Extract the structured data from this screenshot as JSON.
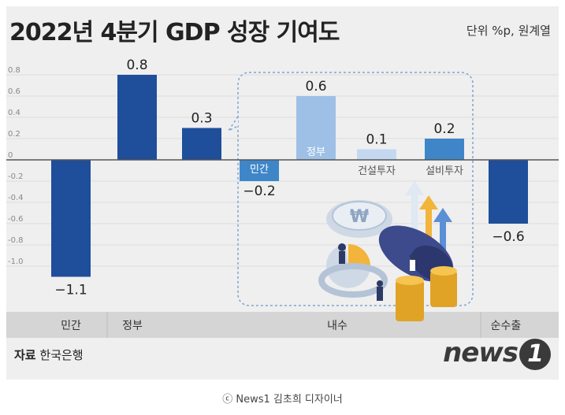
{
  "header": {
    "title": "2022년 4분기 GDP 성장 기여도",
    "unit": "단위 %p, 원계열"
  },
  "footer": {
    "source_label": "자료",
    "source": "한국은행",
    "logo": "news",
    "logo_mark": "1",
    "credit": "ⓒ News1 김초희 디자이너"
  },
  "chart_data": {
    "type": "bar",
    "title": "2022년 4분기 GDP 성장 기여도",
    "ylabel": "",
    "ylim": [
      -1.2,
      0.8
    ],
    "yticks": [
      {
        "value": 0.8,
        "label": "0.8"
      },
      {
        "value": 0.6,
        "label": "0.6"
      },
      {
        "value": 0.4,
        "label": "0.4"
      },
      {
        "value": 0.2,
        "label": "0.2"
      },
      {
        "value": 0.0,
        "label": "0"
      },
      {
        "value": -0.2,
        "label": "-0.2"
      },
      {
        "value": -0.4,
        "label": "-0.4"
      },
      {
        "value": -0.6,
        "label": "-0.6"
      },
      {
        "value": -0.8,
        "label": "-0.8"
      },
      {
        "value": -1.0,
        "label": "-1.0"
      }
    ],
    "bars": [
      {
        "id": "private",
        "category": "민간",
        "value": -1.1,
        "label": "−1.1",
        "color": "#1f4e9a"
      },
      {
        "id": "government",
        "category": "정부",
        "value": 0.8,
        "label": "0.8",
        "color": "#1f4e9a"
      },
      {
        "id": "domestic",
        "category": "내수",
        "value": 0.3,
        "label": "0.3",
        "color": "#1f4e9a"
      },
      {
        "id": "domestic-private",
        "category": "민간",
        "value": -0.2,
        "label": "−0.2",
        "color": "#3f86c9"
      },
      {
        "id": "domestic-government",
        "category": "정부",
        "value": 0.6,
        "label": "0.6",
        "color": "#9ec0e6"
      },
      {
        "id": "domestic-construction",
        "category": "건설투자",
        "value": 0.1,
        "label": "0.1",
        "color": "#c4d9f0"
      },
      {
        "id": "domestic-equipment",
        "category": "설비투자",
        "value": 0.2,
        "label": "0.2",
        "color": "#3f86c9"
      },
      {
        "id": "net-exports",
        "category": "순수출",
        "value": -0.6,
        "label": "−0.6",
        "color": "#1f4e9a"
      }
    ],
    "x_labels": [
      "민간",
      "정부",
      "내수",
      "순수출"
    ]
  }
}
